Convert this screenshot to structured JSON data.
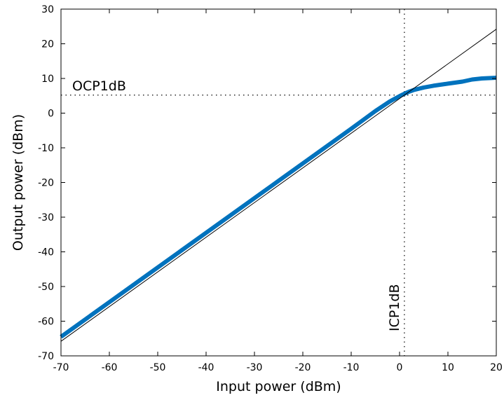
{
  "chart_data": {
    "type": "line",
    "xlabel": "Input power (dBm)",
    "ylabel": "Output power (dBm)",
    "xlim": [
      -70,
      20
    ],
    "ylim": [
      -70,
      30
    ],
    "xticks": [
      -70,
      -60,
      -50,
      -40,
      -30,
      -20,
      -10,
      0,
      10,
      20
    ],
    "yticks": [
      -70,
      -60,
      -50,
      -40,
      -30,
      -20,
      -10,
      0,
      10,
      20,
      30
    ],
    "grid": false,
    "series": [
      {
        "color": "#0072BD",
        "style": "thick",
        "x": [
          -70,
          -60,
          -50,
          -40,
          -30,
          -20,
          -10,
          -5,
          -2,
          0,
          1,
          2,
          3,
          5,
          7,
          10,
          13,
          15,
          17,
          20
        ],
        "y": [
          -64.5,
          -54.5,
          -44.5,
          -34.5,
          -24.5,
          -14.5,
          -4.5,
          0.6,
          3.4,
          4.9,
          5.6,
          6.2,
          6.7,
          7.4,
          7.9,
          8.5,
          9.1,
          9.7,
          10.0,
          10.2
        ]
      },
      {
        "color": "#000000",
        "style": "thin",
        "x": [
          -70,
          20
        ],
        "y": [
          -65.8,
          24.2
        ]
      }
    ],
    "annotations": [
      {
        "text": "OCP1dB",
        "y": 5.2
      },
      {
        "text": "ICP1dB",
        "x": 1.0
      }
    ]
  }
}
